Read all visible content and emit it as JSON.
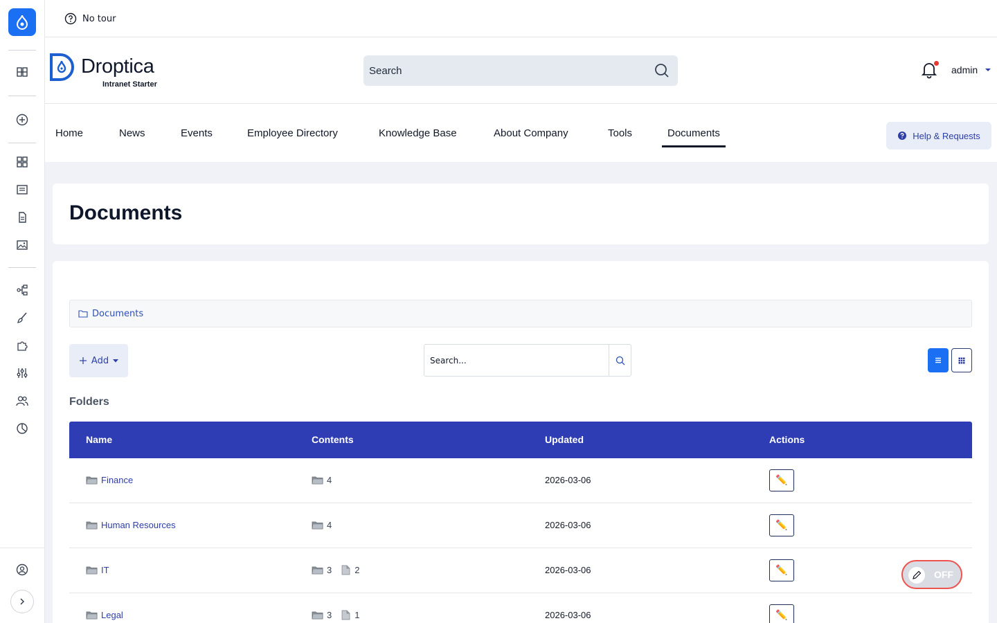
{
  "tour": {
    "label": "No tour"
  },
  "brand": {
    "name": "Droptica",
    "subtitle": "Intranet Starter"
  },
  "header": {
    "search_placeholder": "Search",
    "user": "admin"
  },
  "nav": {
    "items": [
      "Home",
      "News",
      "Events",
      "Employee Directory",
      "Knowledge Base",
      "About Company",
      "Tools",
      "Documents"
    ],
    "active": "Documents",
    "help_label": "Help & Requests"
  },
  "page": {
    "title": "Documents"
  },
  "documents": {
    "breadcrumb": "Documents",
    "add_label": "Add",
    "search_placeholder": "Search...",
    "folders_label": "Folders",
    "columns": [
      "Name",
      "Contents",
      "Updated",
      "Actions"
    ],
    "rows": [
      {
        "name": "Finance",
        "folders": "4",
        "files": "",
        "updated": "2026-03-06"
      },
      {
        "name": "Human Resources",
        "folders": "4",
        "files": "",
        "updated": "2026-03-06"
      },
      {
        "name": "IT",
        "folders": "3",
        "files": "2",
        "updated": "2026-03-06"
      },
      {
        "name": "Legal",
        "folders": "3",
        "files": "1",
        "updated": "2026-03-06"
      }
    ]
  },
  "toggle": {
    "label": "OFF"
  },
  "colors": {
    "accent": "#1b6ff3",
    "table_header": "#2f3db5",
    "link": "#2d3ea8"
  }
}
